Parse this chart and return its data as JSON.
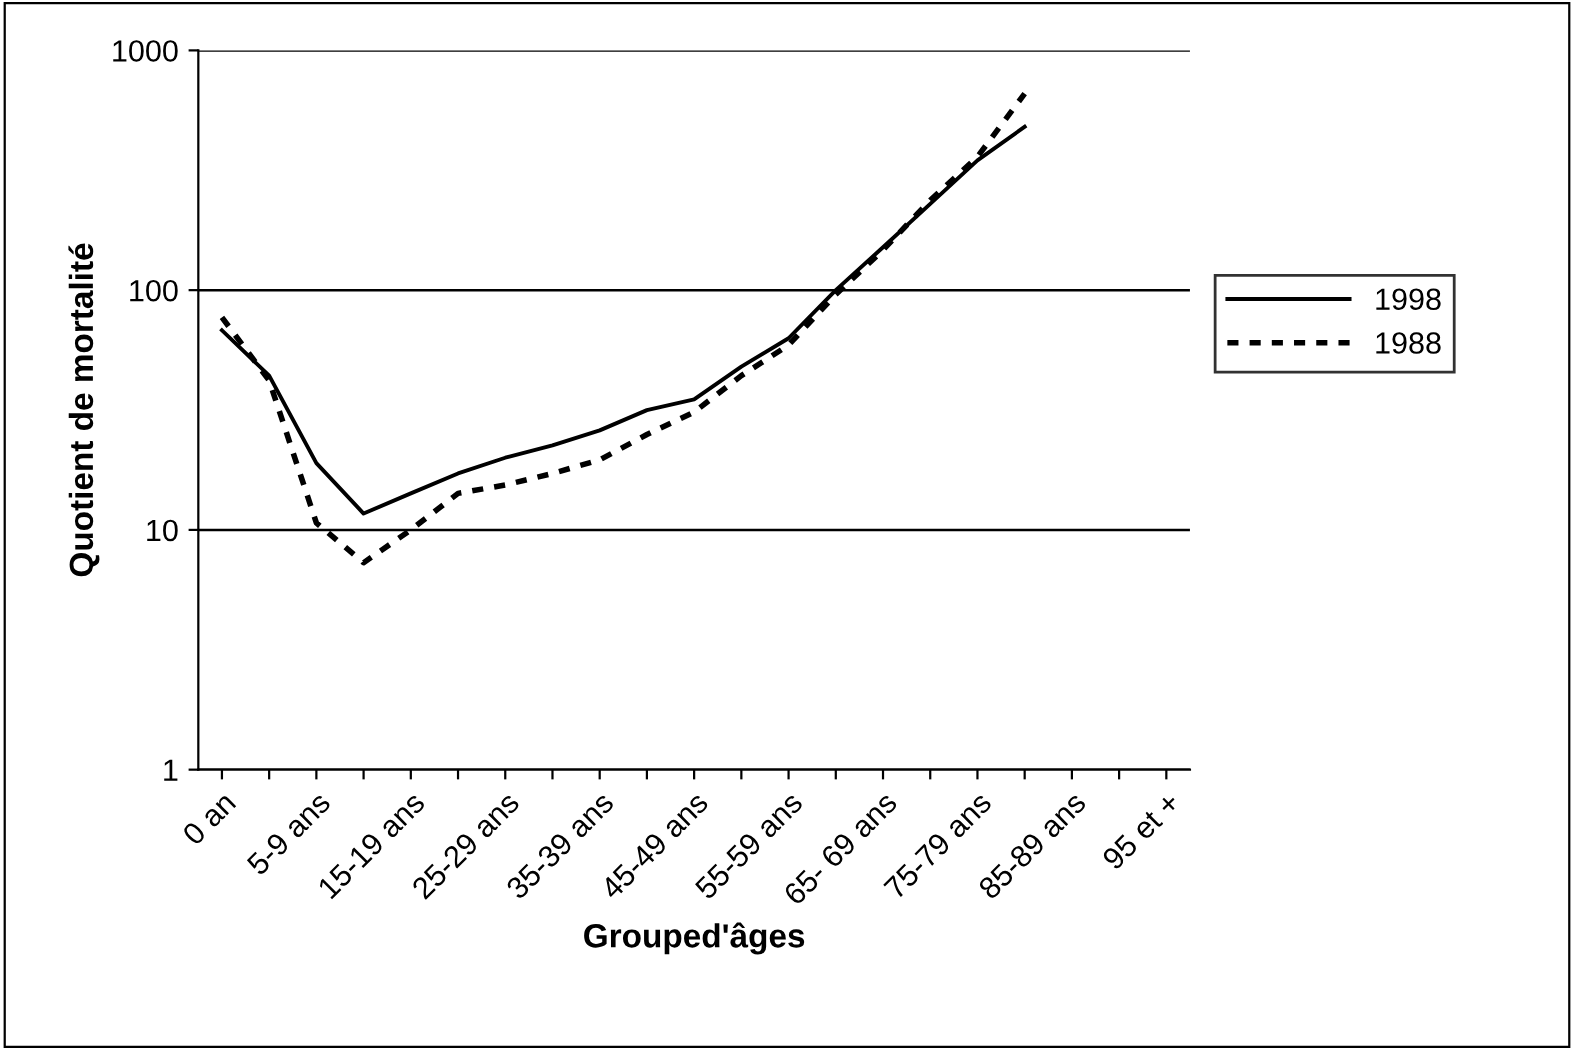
{
  "chart_data": {
    "type": "line",
    "xlabel": "Grouped'âges",
    "ylabel": "Quotient de mortalité",
    "categories": [
      "0 an",
      null,
      "5-9 ans",
      null,
      "15-19 ans",
      null,
      "25-29 ans",
      null,
      "35-39 ans",
      null,
      "45-49 ans",
      null,
      "55-59 ans",
      null,
      "65- 69 ans",
      null,
      "75-79 ans",
      null,
      "85-89 ans",
      null,
      "95 et +"
    ],
    "series": [
      {
        "name": "1998",
        "color": "#000000",
        "line_style": "solid",
        "values": [
          68,
          44,
          19,
          11.7,
          14.2,
          17.2,
          20,
          22.5,
          26,
          31.6,
          35,
          48,
          63,
          100,
          151,
          229,
          348,
          480,
          null,
          null,
          null
        ]
      },
      {
        "name": "1988",
        "color": "#000000",
        "line_style": "dotted",
        "values": [
          77,
          42,
          10.7,
          7.3,
          10,
          14.2,
          15.4,
          17.2,
          19.6,
          25,
          31,
          44,
          59,
          96,
          147,
          237,
          360,
          660,
          null,
          null,
          null
        ]
      }
    ],
    "log": "y",
    "ylim": [
      1,
      1000
    ],
    "yticks": [
      1,
      10,
      100,
      1000
    ],
    "grid": "y",
    "legend": "right",
    "marker": "none"
  }
}
